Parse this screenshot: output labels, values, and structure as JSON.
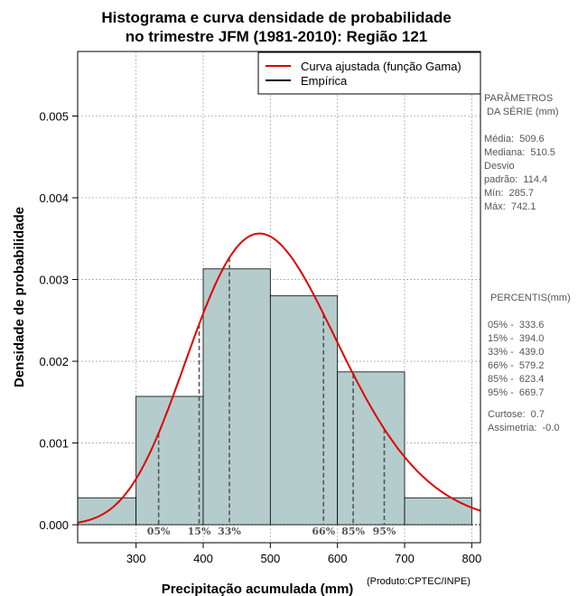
{
  "chart_data": {
    "type": "bar",
    "title_line1": "Histograma e curva densidade de probabilidade",
    "title_line2": "no trimestre JFM (1981-2010): Região 121",
    "xlabel": "Precipitação acumulada (mm)",
    "ylabel": "Densidade de probabilidade",
    "xlim": [
      213,
      813
    ],
    "ylim": [
      -0.00022,
      0.00579
    ],
    "x_ticks": [
      300,
      400,
      500,
      600,
      700,
      800
    ],
    "y_ticks": [
      0.0,
      0.001,
      0.002,
      0.003,
      0.004,
      0.005
    ],
    "y_tick_labels": [
      "0.000",
      "0.001",
      "0.002",
      "0.003",
      "0.004",
      "0.005"
    ],
    "bins": [
      {
        "from": 200,
        "to": 300,
        "density": 0.00033
      },
      {
        "from": 300,
        "to": 400,
        "density": 0.00157
      },
      {
        "from": 400,
        "to": 500,
        "density": 0.00313
      },
      {
        "from": 500,
        "to": 600,
        "density": 0.0028
      },
      {
        "from": 600,
        "to": 700,
        "density": 0.00187
      },
      {
        "from": 700,
        "to": 800,
        "density": 0.00033
      }
    ],
    "gamma_fit": {
      "mean": 509.6,
      "sd": 114.4
    },
    "legend": [
      {
        "label": "Curva ajustada (função Gama)",
        "color": "#e00000"
      },
      {
        "label": "Empírica",
        "color": "#000000"
      }
    ],
    "percentile_marks": [
      {
        "label": "05%",
        "value": 333.6
      },
      {
        "label": "15%",
        "value": 394.0
      },
      {
        "label": "33%",
        "value": 439.0
      },
      {
        "label": "66%",
        "value": 579.2
      },
      {
        "label": "85%",
        "value": 623.4
      },
      {
        "label": "95%",
        "value": 669.7
      }
    ],
    "colors": {
      "bar_fill": "#b4cccc",
      "curve": "#e00000",
      "grid": "#aaaaaa",
      "pct_line": "#555555"
    }
  },
  "side_panel": {
    "params_title": "PARÂMETROS\n DA SÉRIE (mm)",
    "params_body": "Média:  509.6\nMediana:  510.5\nDesvio\npadrão:  114.4\nMín:  285.7\nMáx:  742.1",
    "percentis_title": "PERCENTIS(mm)",
    "percentis_body": "05% -  333.6\n15% -  394.0\n33% -  439.0\n66% -  579.2\n85% -  623.4\n95% -  669.7",
    "stats_body": "Curtose:  0.7\nAssimetria:  -0.0"
  },
  "credit": "(Produto:CPTEC/INPE)"
}
